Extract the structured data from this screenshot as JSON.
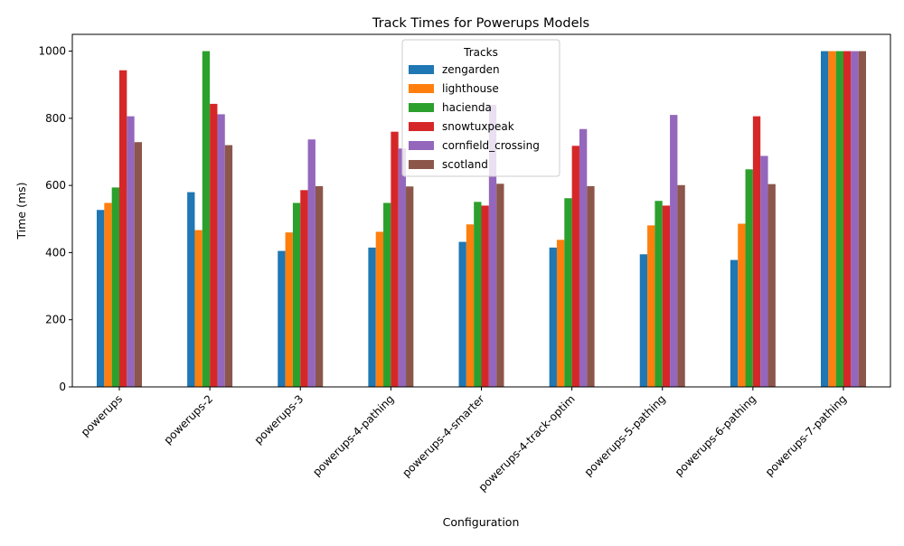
{
  "chart_data": {
    "type": "bar",
    "title": "Track Times for Powerups Models",
    "xlabel": "Configuration",
    "ylabel": "Time (ms)",
    "ylim": [
      0,
      1050
    ],
    "yticks": [
      0,
      200,
      400,
      600,
      800,
      1000
    ],
    "grid": false,
    "legend": {
      "title": "Tracks",
      "placement": "top-center"
    },
    "categories": [
      "powerups",
      "powerups-2",
      "powerups-3",
      "powerups-4-pathing",
      "powerups-4-smarter",
      "powerups-4-track-optim",
      "powerups-5-pathing",
      "powerups-6-pathing",
      "powerups-7-pathing"
    ],
    "series": [
      {
        "name": "zengarden",
        "color": "#1f77b4",
        "values": [
          527,
          580,
          405,
          415,
          432,
          415,
          395,
          378,
          1000
        ]
      },
      {
        "name": "lighthouse",
        "color": "#ff7f0e",
        "values": [
          548,
          467,
          460,
          462,
          484,
          438,
          481,
          486,
          1000
        ]
      },
      {
        "name": "hacienda",
        "color": "#2ca02c",
        "values": [
          594,
          1000,
          548,
          548,
          551,
          562,
          554,
          648,
          1000
        ]
      },
      {
        "name": "snowtuxpeak",
        "color": "#d62728",
        "values": [
          943,
          843,
          586,
          760,
          540,
          718,
          540,
          806,
          1000
        ]
      },
      {
        "name": "cornfield_crossing",
        "color": "#9467bd",
        "values": [
          806,
          812,
          737,
          710,
          840,
          768,
          810,
          688,
          1000
        ]
      },
      {
        "name": "scotland",
        "color": "#8c564b",
        "values": [
          729,
          720,
          598,
          597,
          605,
          598,
          601,
          604,
          1000
        ]
      }
    ]
  }
}
